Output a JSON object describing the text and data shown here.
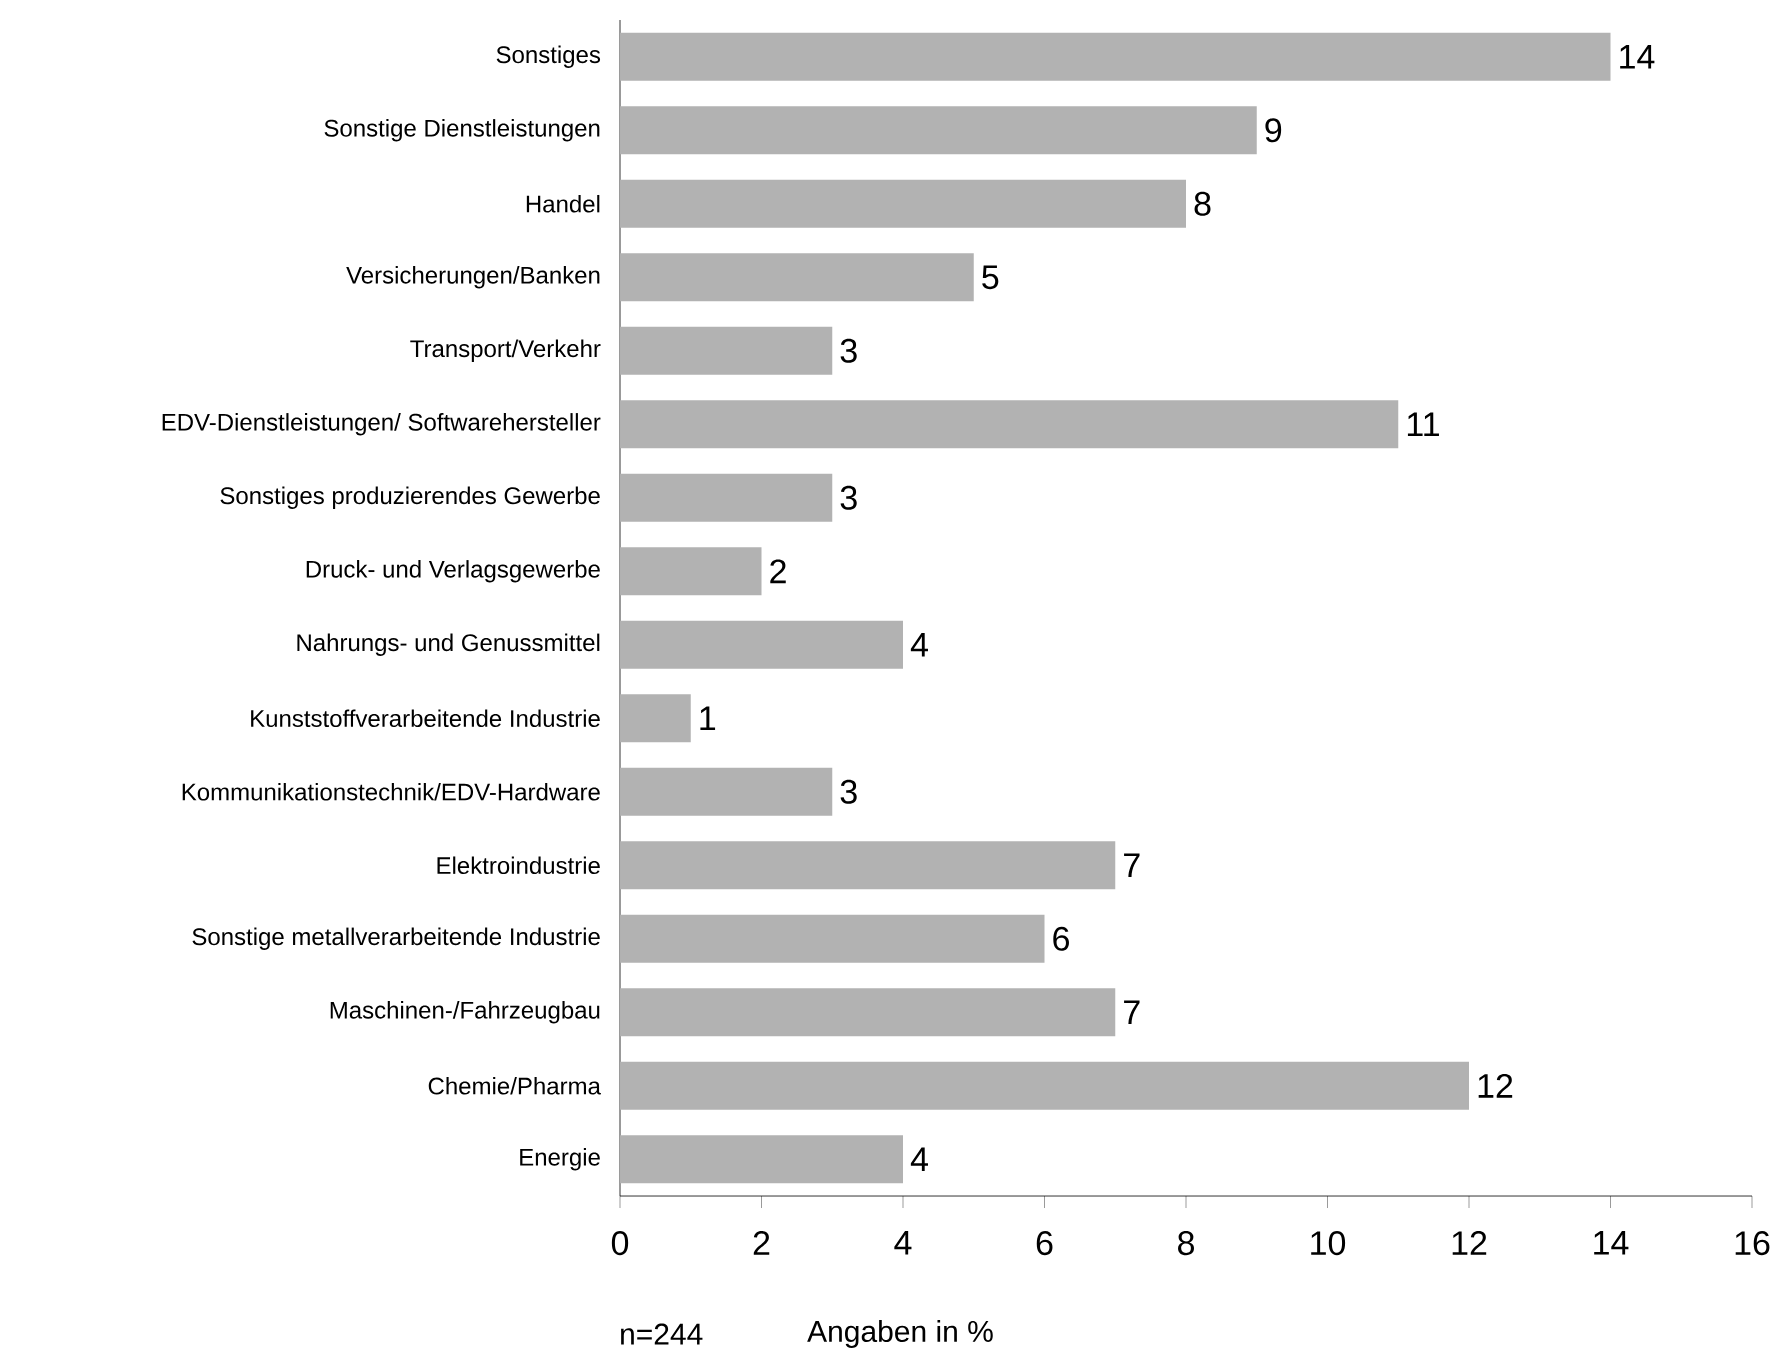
{
  "chart_data": {
    "type": "bar",
    "orientation": "horizontal",
    "categories": [
      "Sonstiges",
      "Sonstige Dienstleistungen",
      "Handel",
      "Versicherungen/Banken",
      "Transport/Verkehr",
      "EDV-Dienstleistungen/ Softwarehersteller",
      "Sonstiges produzierendes Gewerbe",
      "Druck- und Verlagsgewerbe",
      "Nahrungs- und Genussmittel",
      "Kunststoffverarbeitende Industrie",
      "Kommunikationstechnik/EDV-Hardware",
      "Elektroindustrie",
      "Sonstige metallverarbeitende Industrie",
      "Maschinen-/Fahrzeugbau",
      "Chemie/Pharma",
      "Energie"
    ],
    "values": [
      14,
      9,
      8,
      5,
      3,
      11,
      3,
      2,
      4,
      1,
      3,
      7,
      6,
      7,
      12,
      4
    ],
    "color": "#b2b2b2",
    "xlim": [
      0,
      16
    ],
    "xticks": [
      0,
      2,
      4,
      6,
      8,
      10,
      12,
      14,
      16
    ],
    "data_labels": true,
    "annotations": [
      "n=244",
      "Angaben in %"
    ]
  }
}
